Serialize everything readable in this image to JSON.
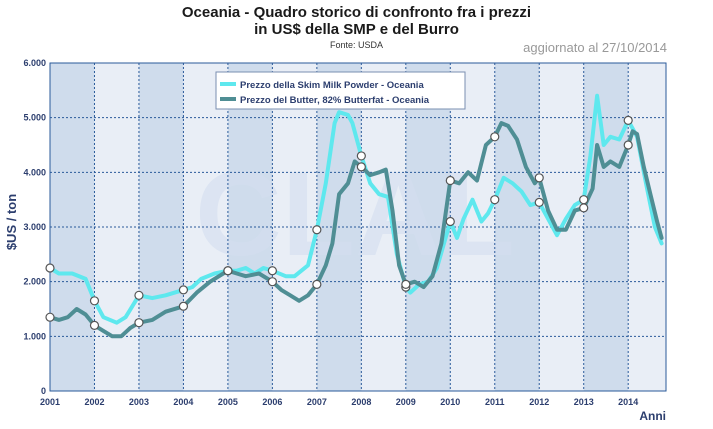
{
  "header": {
    "title_line1": "Oceania - Quadro storico di confronto fra i prezzi",
    "title_line2": "in US$ della SMP e del Burro",
    "source": "Fonte: USDA",
    "updated": "aggiornato al 27/10/2014"
  },
  "colors": {
    "smp": "#5ee8ee",
    "butter": "#4f8e94",
    "band_dark": "#cfdcec",
    "band_light": "#e9eef6",
    "grid": "#2a5a9a",
    "axis_text": "#2c3e6e"
  },
  "chart_data": {
    "type": "line",
    "title": "Oceania - Quadro storico di confronto fra i prezzi in US$ della SMP e del Burro",
    "ylabel": "$US / ton",
    "xlabel": "Anni",
    "ylim": [
      0,
      6000
    ],
    "xlim": [
      2001,
      2014.85
    ],
    "yticks": [
      "0",
      "1.000",
      "2.000",
      "3.000",
      "4.000",
      "5.000",
      "6.000"
    ],
    "xticks": [
      "2001",
      "2002",
      "2003",
      "2004",
      "2005",
      "2006",
      "2007",
      "2008",
      "2009",
      "2010",
      "2011",
      "2012",
      "2013",
      "2014"
    ],
    "grid": true,
    "legend_position": "top-center",
    "series": [
      {
        "name": "Prezzo della Skim Milk Powder - Oceania",
        "x": [
          2001.0,
          2001.2,
          2001.5,
          2001.8,
          2002.0,
          2002.2,
          2002.5,
          2002.7,
          2003.0,
          2003.3,
          2003.6,
          2004.0,
          2004.2,
          2004.4,
          2004.7,
          2005.0,
          2005.2,
          2005.4,
          2005.6,
          2005.8,
          2006.0,
          2006.3,
          2006.5,
          2006.8,
          2007.0,
          2007.2,
          2007.4,
          2007.5,
          2007.7,
          2007.8,
          2008.0,
          2008.2,
          2008.4,
          2008.6,
          2008.8,
          2009.0,
          2009.1,
          2009.3,
          2009.5,
          2009.7,
          2010.0,
          2010.15,
          2010.3,
          2010.5,
          2010.7,
          2010.85,
          2011.0,
          2011.2,
          2011.4,
          2011.6,
          2011.8,
          2012.0,
          2012.2,
          2012.4,
          2012.6,
          2012.8,
          2013.0,
          2013.15,
          2013.3,
          2013.45,
          2013.6,
          2013.8,
          2014.0,
          2014.2,
          2014.4,
          2014.6,
          2014.75
        ],
        "values": [
          2250,
          2150,
          2150,
          2050,
          1650,
          1350,
          1250,
          1350,
          1750,
          1700,
          1750,
          1850,
          1900,
          2050,
          2150,
          2200,
          2200,
          2250,
          2150,
          2250,
          2200,
          2100,
          2100,
          2300,
          2950,
          3800,
          4900,
          5100,
          5050,
          4900,
          4300,
          3800,
          3600,
          3550,
          2500,
          1900,
          1800,
          1950,
          2000,
          2250,
          3100,
          2800,
          3150,
          3500,
          3100,
          3250,
          3500,
          3900,
          3800,
          3650,
          3400,
          3450,
          3150,
          2850,
          3150,
          3400,
          3500,
          4300,
          5400,
          4500,
          4650,
          4600,
          4950,
          4650,
          3800,
          3000,
          2700
        ]
      },
      {
        "name": "Prezzo del Butter, 82% Butterfat - Oceania",
        "x": [
          2001.0,
          2001.2,
          2001.4,
          2001.6,
          2001.8,
          2002.0,
          2002.2,
          2002.4,
          2002.6,
          2002.8,
          2003.0,
          2003.3,
          2003.6,
          2004.0,
          2004.3,
          2004.6,
          2005.0,
          2005.2,
          2005.4,
          2005.7,
          2006.0,
          2006.2,
          2006.4,
          2006.6,
          2006.8,
          2007.0,
          2007.2,
          2007.35,
          2007.5,
          2007.7,
          2007.85,
          2008.0,
          2008.2,
          2008.4,
          2008.55,
          2008.7,
          2008.85,
          2009.0,
          2009.2,
          2009.4,
          2009.6,
          2009.8,
          2010.0,
          2010.2,
          2010.4,
          2010.6,
          2010.8,
          2011.0,
          2011.15,
          2011.3,
          2011.5,
          2011.7,
          2011.9,
          2012.0,
          2012.2,
          2012.4,
          2012.6,
          2012.8,
          2013.0,
          2013.2,
          2013.3,
          2013.45,
          2013.6,
          2013.8,
          2014.0,
          2014.1,
          2014.2,
          2014.35,
          2014.5,
          2014.65,
          2014.75
        ],
        "values": [
          1350,
          1300,
          1350,
          1500,
          1400,
          1200,
          1100,
          1000,
          1000,
          1150,
          1250,
          1300,
          1450,
          1550,
          1800,
          2000,
          2200,
          2150,
          2100,
          2150,
          2000,
          1850,
          1750,
          1650,
          1750,
          1950,
          2300,
          2700,
          3600,
          3800,
          4200,
          4100,
          3950,
          4000,
          4050,
          3300,
          2300,
          1950,
          2000,
          1900,
          2100,
          2700,
          3850,
          3800,
          4000,
          3850,
          4500,
          4650,
          4900,
          4850,
          4600,
          4100,
          3800,
          3900,
          3300,
          2950,
          2950,
          3300,
          3350,
          3700,
          4500,
          4100,
          4200,
          4100,
          4500,
          4750,
          4700,
          4100,
          3600,
          3100,
          2800
        ]
      }
    ]
  }
}
